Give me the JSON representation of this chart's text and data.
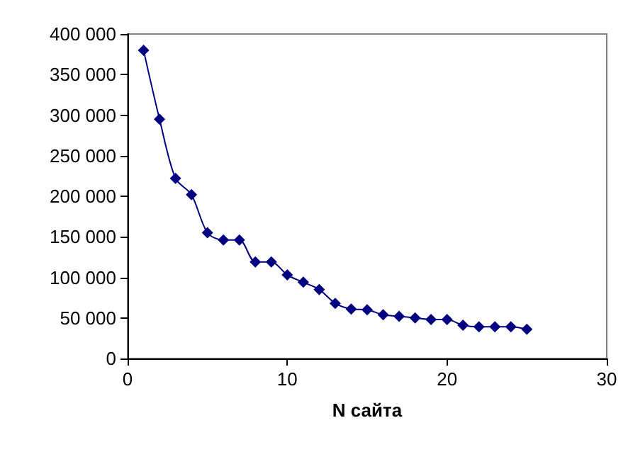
{
  "chart_data": {
    "type": "line",
    "xlabel": "N сайта",
    "series": [
      {
        "color": "#000080",
        "x": [
          1,
          2,
          3,
          4,
          5,
          6,
          7,
          8,
          9,
          10,
          11,
          12,
          13,
          14,
          15,
          16,
          17,
          18,
          19,
          20,
          21,
          22,
          23,
          24,
          25
        ],
        "values": [
          380000,
          295000,
          222000,
          202000,
          155000,
          146000,
          146000,
          119000,
          119000,
          103000,
          94000,
          85000,
          68000,
          61000,
          60000,
          54000,
          52000,
          50000,
          48000,
          48000,
          41000,
          39000,
          39000,
          39000,
          36000
        ]
      }
    ],
    "xlim": [
      0,
      30
    ],
    "xticks": [
      0,
      10,
      20,
      30
    ],
    "ylim": [
      0,
      400000
    ],
    "yticks": [
      {
        "value": 0,
        "label": "0"
      },
      {
        "value": 50000,
        "label": "50 000"
      },
      {
        "value": 100000,
        "label": "100 000"
      },
      {
        "value": 150000,
        "label": "150 000"
      },
      {
        "value": 200000,
        "label": "200 000"
      },
      {
        "value": 250000,
        "label": "250 000"
      },
      {
        "value": 300000,
        "label": "300 000"
      },
      {
        "value": 350000,
        "label": "350 000"
      },
      {
        "value": 400000,
        "label": "400 000"
      }
    ],
    "grid": false,
    "marker": "diamond",
    "line_style": "solid"
  }
}
